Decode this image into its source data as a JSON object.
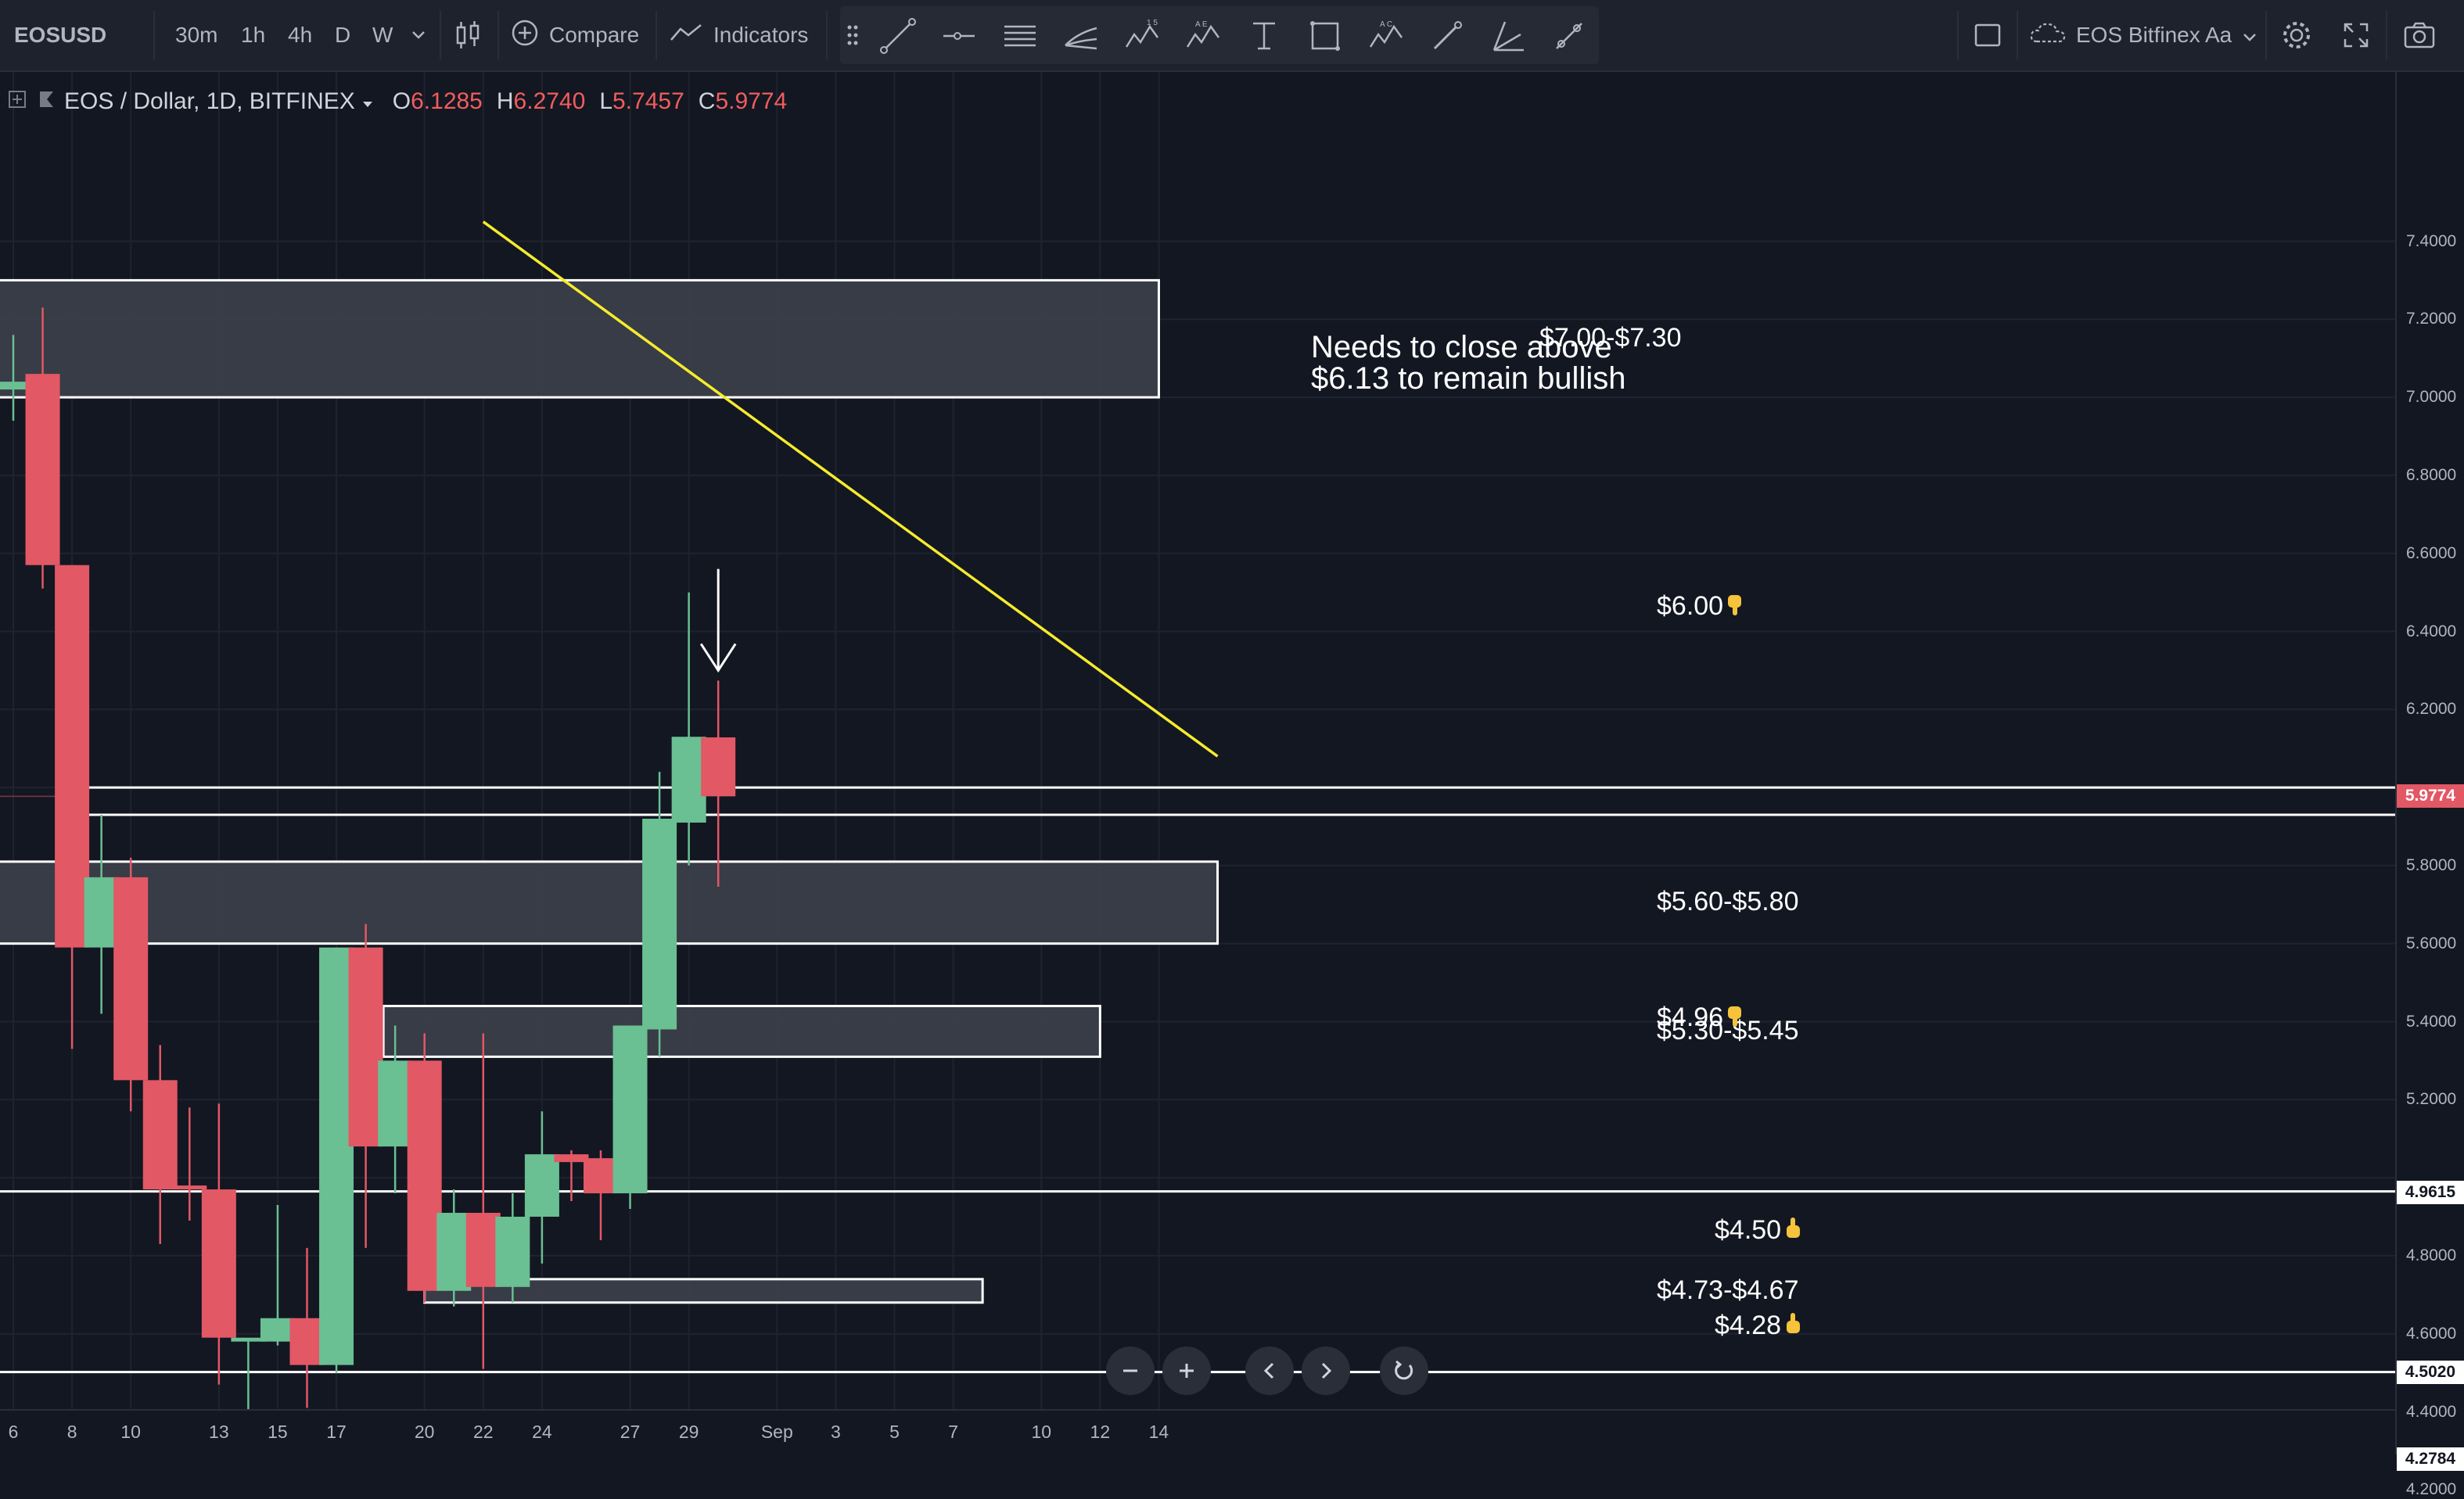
{
  "header": {
    "symbol": "EOSUSD",
    "timeframes": [
      {
        "label": "30m",
        "active": false
      },
      {
        "label": "1h",
        "active": false
      },
      {
        "label": "4h",
        "active": false
      },
      {
        "label": "D",
        "active": true
      },
      {
        "label": "W",
        "active": false
      }
    ],
    "compare_label": "Compare",
    "indicators_label": "Indicators",
    "layout_name": "EOS Bitfinex Aa"
  },
  "legend": {
    "title": "EOS / Dollar, 1D, BITFINEX",
    "open_label": "O",
    "open": "6.1285",
    "high_label": "H",
    "high": "6.2740",
    "low_label": "L",
    "low": "5.7457",
    "close_label": "C",
    "close": "5.9774"
  },
  "colors": {
    "up": "#6abf93",
    "down": "#e25865",
    "background": "#131722",
    "trendline": "#f5ec2d",
    "zone_fill": "#3d404a",
    "zone_border": "#ffffff"
  },
  "price_axis": {
    "ticks": [
      "7.4000",
      "7.2000",
      "7.0000",
      "6.8000",
      "6.6000",
      "6.4000",
      "6.2000",
      "5.8000",
      "5.6000",
      "5.4000",
      "5.2000",
      "4.8000",
      "4.6000",
      "4.4000",
      "4.2000"
    ],
    "tags": [
      {
        "value": "5.9774",
        "price": 5.9774,
        "color": "#e25865",
        "text_color": "#ffffff"
      },
      {
        "value": "4.9615",
        "price": 4.9615,
        "color": "#ffffff",
        "text_color": "#131722"
      },
      {
        "value": "4.5020",
        "price": 4.502,
        "color": "#ffffff",
        "text_color": "#131722"
      },
      {
        "value": "4.2784",
        "price": 4.2784,
        "color": "#ffffff",
        "text_color": "#131722"
      }
    ]
  },
  "time_axis": {
    "labels": [
      {
        "label": "6",
        "day": 6
      },
      {
        "label": "8",
        "day": 8
      },
      {
        "label": "10",
        "day": 10
      },
      {
        "label": "13",
        "day": 13
      },
      {
        "label": "15",
        "day": 15
      },
      {
        "label": "17",
        "day": 17
      },
      {
        "label": "20",
        "day": 20
      },
      {
        "label": "22",
        "day": 22
      },
      {
        "label": "24",
        "day": 24
      },
      {
        "label": "27",
        "day": 27
      },
      {
        "label": "29",
        "day": 29
      },
      {
        "label": "Sep",
        "day": 32
      },
      {
        "label": "3",
        "day": 34
      },
      {
        "label": "5",
        "day": 36
      },
      {
        "label": "7",
        "day": 38
      },
      {
        "label": "10",
        "day": 41
      },
      {
        "label": "12",
        "day": 43
      },
      {
        "label": "14",
        "day": 45
      }
    ]
  },
  "chart_data": {
    "type": "candlestick",
    "symbol": "EOSUSD",
    "interval": "1D",
    "exchange": "BITFINEX",
    "y_range": [
      4.1,
      7.45
    ],
    "candles": [
      {
        "day": 6,
        "o": 7.02,
        "h": 7.16,
        "l": 6.94,
        "c": 7.04
      },
      {
        "day": 7,
        "o": 7.06,
        "h": 7.23,
        "l": 6.51,
        "c": 6.57
      },
      {
        "day": 8,
        "o": 6.57,
        "h": 6.57,
        "l": 5.33,
        "c": 5.59
      },
      {
        "day": 9,
        "o": 5.59,
        "h": 5.93,
        "l": 5.42,
        "c": 5.77
      },
      {
        "day": 10,
        "o": 5.77,
        "h": 5.82,
        "l": 5.17,
        "c": 5.25
      },
      {
        "day": 11,
        "o": 5.25,
        "h": 5.34,
        "l": 4.83,
        "c": 4.97
      },
      {
        "day": 12,
        "o": 4.98,
        "h": 5.18,
        "l": 4.89,
        "c": 4.97
      },
      {
        "day": 13,
        "o": 4.97,
        "h": 5.19,
        "l": 4.47,
        "c": 4.59
      },
      {
        "day": 14,
        "o": 4.58,
        "h": 4.58,
        "l": 4.18,
        "c": 4.59
      },
      {
        "day": 15,
        "o": 4.58,
        "h": 4.93,
        "l": 4.57,
        "c": 4.64
      },
      {
        "day": 16,
        "o": 4.64,
        "h": 4.82,
        "l": 4.41,
        "c": 4.52
      },
      {
        "day": 17,
        "o": 4.52,
        "h": 5.59,
        "l": 4.5,
        "c": 5.59
      },
      {
        "day": 18,
        "o": 5.59,
        "h": 5.65,
        "l": 4.82,
        "c": 5.08
      },
      {
        "day": 19,
        "o": 5.08,
        "h": 5.39,
        "l": 4.96,
        "c": 5.3
      },
      {
        "day": 20,
        "o": 5.3,
        "h": 5.37,
        "l": 4.68,
        "c": 4.71
      },
      {
        "day": 21,
        "o": 4.71,
        "h": 4.97,
        "l": 4.67,
        "c": 4.91
      },
      {
        "day": 22,
        "o": 4.91,
        "h": 5.37,
        "l": 4.51,
        "c": 4.72
      },
      {
        "day": 23,
        "o": 4.72,
        "h": 4.96,
        "l": 4.68,
        "c": 4.9
      },
      {
        "day": 24,
        "o": 4.9,
        "h": 5.17,
        "l": 4.78,
        "c": 5.06
      },
      {
        "day": 25,
        "o": 5.06,
        "h": 5.07,
        "l": 4.94,
        "c": 5.04
      },
      {
        "day": 26,
        "o": 5.05,
        "h": 5.07,
        "l": 4.84,
        "c": 4.96
      },
      {
        "day": 27,
        "o": 4.96,
        "h": 5.39,
        "l": 4.92,
        "c": 5.39
      },
      {
        "day": 28,
        "o": 5.38,
        "h": 6.04,
        "l": 5.31,
        "c": 5.92
      },
      {
        "day": 29,
        "o": 5.91,
        "h": 6.5,
        "l": 5.8,
        "c": 6.13
      },
      {
        "day": 30,
        "o": 6.1285,
        "h": 6.274,
        "l": 5.7457,
        "c": 5.9774
      }
    ],
    "zones": [
      {
        "label": "$7.00-$7.30",
        "from": 7.0,
        "to": 7.3,
        "start_day": 5,
        "end_day": 45,
        "filled": true
      },
      {
        "label": "$5.60-$5.80",
        "from": 5.6,
        "to": 5.81,
        "start_day": 5,
        "end_day": 47,
        "filled": true
      },
      {
        "label": "$5.30-$5.45",
        "from": 5.31,
        "to": 5.44,
        "start_day": 18.6,
        "end_day": 43,
        "filled": true
      },
      {
        "label": "$4.73-$4.67",
        "from": 4.68,
        "to": 4.74,
        "start_day": 20,
        "end_day": 39,
        "filled": true
      }
    ],
    "levels": [
      {
        "label": "$6.00",
        "icon": "hand-down-icon",
        "prices": [
          5.93,
          6.0
        ],
        "start_day": 8.3,
        "label_day": 35.1
      },
      {
        "label": "$4.96",
        "icon": "hand-down-icon",
        "prices": [
          4.965
        ],
        "start_day": 5,
        "label_day": 35.1
      },
      {
        "label": "$4.50",
        "icon": "hand-up-icon",
        "prices": [
          4.502
        ],
        "start_day": 5,
        "label_day": 36.1
      },
      {
        "label": "$4.28",
        "icon": "hand-up-icon",
        "prices": [
          4.278
        ],
        "start_day": 5,
        "label_day": 36.1
      }
    ],
    "trendline": {
      "from": {
        "day": 22,
        "price": 7.45
      },
      "to": {
        "day": 47,
        "price": 6.08
      }
    },
    "annotation": {
      "lines": [
        "Needs to close above",
        "$6.13 to remain bullish"
      ],
      "arrow_day": 30,
      "arrow_from": 6.56,
      "arrow_to": 6.3
    }
  }
}
